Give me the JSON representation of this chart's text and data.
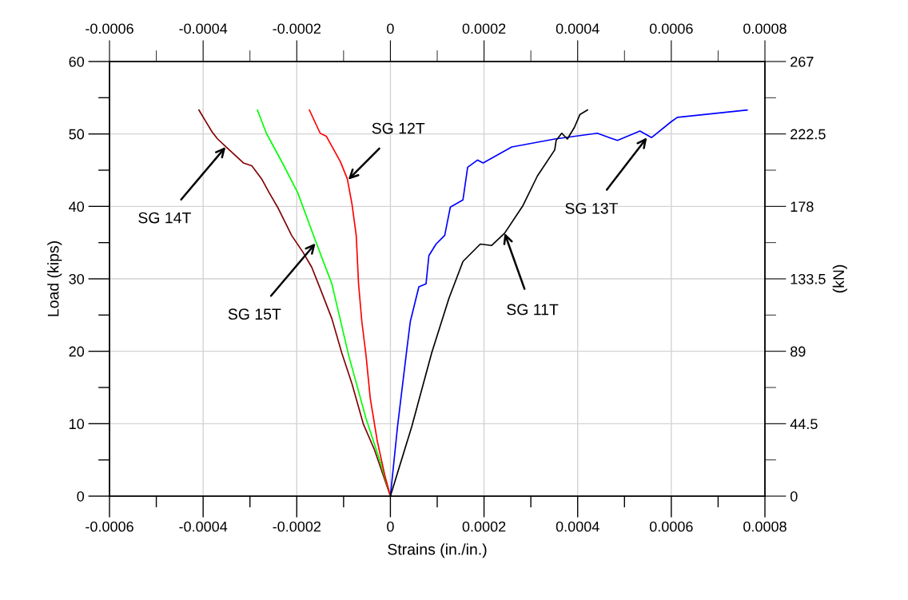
{
  "chart_data": {
    "type": "line",
    "xlabel": "Strains (in./in.)",
    "ylabel": "Load (kips)",
    "y2label": "(kN)",
    "xlim": [
      -0.0006,
      0.0008
    ],
    "xticks": [
      -0.0006,
      -0.0004,
      -0.0002,
      0,
      0.0002,
      0.0004,
      0.0006,
      0.0008
    ],
    "x2lim": [
      -0.0006,
      0.0008
    ],
    "x2ticks": [
      -0.0006,
      -0.0004,
      -0.0002,
      0,
      0.0002,
      0.0004,
      0.0006,
      0.0008
    ],
    "ylim": [
      0,
      60
    ],
    "yticks": [
      0,
      10,
      20,
      30,
      40,
      50,
      60
    ],
    "y2lim": [
      0,
      267
    ],
    "y2ticks": [
      0,
      44.5,
      89,
      133.5,
      178,
      222.5,
      267
    ],
    "grid": true,
    "marker": "none",
    "line_style": "solid",
    "series": [
      {
        "color": "#800000",
        "x": [
          0,
          -3.4e-05,
          -5.8e-05,
          -8.2e-05,
          -0.000104,
          -0.000125,
          -0.000149,
          -0.000168,
          -0.000186,
          -0.000211,
          -0.000241,
          -0.000259,
          -0.000275,
          -0.000296,
          -0.000314,
          -0.000351,
          -0.000369,
          -0.000381,
          -0.000409
        ],
        "values": [
          0,
          6.4,
          10.0,
          15.5,
          19.8,
          24.5,
          28.5,
          31.6,
          33.6,
          36.0,
          39.9,
          41.9,
          43.8,
          45.6,
          46.0,
          48.2,
          49.3,
          50.3,
          53.3
        ]
      },
      {
        "color": "#00ff00",
        "x": [
          0,
          -2.2e-05,
          -5.2e-05,
          -8.9e-05,
          -0.000125,
          -0.000162,
          -0.000198,
          -0.000229,
          -0.000265,
          -0.000284
        ],
        "values": [
          0,
          4.8,
          10.7,
          19.4,
          29.3,
          35.6,
          41.9,
          45.8,
          50.1,
          53.3
        ]
      },
      {
        "color": "#ff0000",
        "x": [
          0,
          -1.2e-05,
          -2.8e-05,
          -4.3e-05,
          -5.2e-05,
          -6.1e-05,
          -6.8e-05,
          -7.3e-05,
          -8.2e-05,
          -9.2e-05,
          -0.000107,
          -0.000137,
          -0.00015,
          -0.000173
        ],
        "values": [
          0,
          2.9,
          7.6,
          13.5,
          19.4,
          24.1,
          29.3,
          36.0,
          40.3,
          43.8,
          46.2,
          49.7,
          50.1,
          53.3
        ]
      },
      {
        "color": "#0000ff",
        "x": [
          0,
          1.52e-05,
          3.35e-05,
          4.25e-05,
          6.08e-05,
          7.61e-05,
          8.22e-05,
          9.75e-05,
          0.000116,
          0.000128,
          0.000155,
          0.000165,
          0.000186,
          0.000198,
          0.000259,
          0.000351,
          0.000442,
          0.000485,
          0.000533,
          0.000558,
          0.0006,
          0.000613,
          0.000674,
          0.000762
        ],
        "values": [
          0,
          9.6,
          19.4,
          24.1,
          28.9,
          29.3,
          33.2,
          34.8,
          36.0,
          39.9,
          40.9,
          45.4,
          46.4,
          46.0,
          48.2,
          49.3,
          50.1,
          49.1,
          50.4,
          49.5,
          51.7,
          52.3,
          52.7,
          53.3
        ]
      },
      {
        "color": "#000000",
        "x": [
          0,
          4.56e-05,
          8.83e-05,
          0.000125,
          0.000155,
          0.000192,
          0.000216,
          0.000244,
          0.000283,
          0.000314,
          0.000351,
          0.000354,
          0.000366,
          0.000378,
          0.000393,
          0.000405,
          0.000421
        ],
        "values": [
          0,
          9.6,
          19.8,
          27.3,
          32.4,
          34.8,
          34.6,
          36.3,
          40.1,
          44.2,
          47.8,
          49.1,
          50.1,
          49.3,
          50.9,
          52.7,
          53.3
        ]
      }
    ],
    "annotations": [
      {
        "text": "SG 12T",
        "x": -9e-05,
        "y": 43.7
      },
      {
        "text": "SG 14T",
        "x": -0.000352,
        "y": 48.2
      },
      {
        "text": "SG 15T",
        "x": -0.00016,
        "y": 34.9
      },
      {
        "text": "SG 13T",
        "x": 0.000548,
        "y": 49.5
      },
      {
        "text": "SG 11T",
        "x": 0.000244,
        "y": 36.3
      }
    ]
  }
}
